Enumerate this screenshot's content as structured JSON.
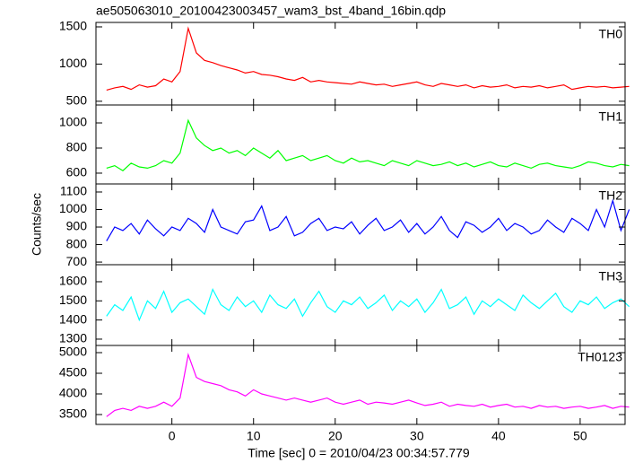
{
  "chart_data": [
    {
      "type": "line",
      "title": "ae505063010_20100423003457_wam3_bst_4band_16bin.qdp",
      "x": [
        -8,
        -7,
        -6,
        -5,
        -4,
        -3,
        -2,
        -1,
        0,
        1,
        2,
        3,
        4,
        5,
        6,
        7,
        8,
        9,
        10,
        11,
        12,
        13,
        14,
        15,
        16,
        17,
        18,
        19,
        20,
        21,
        22,
        23,
        24,
        25,
        26,
        27,
        28,
        29,
        30,
        31,
        32,
        33,
        34,
        35,
        36,
        37,
        38,
        39,
        40,
        41,
        42,
        43,
        44,
        45,
        46,
        47,
        48,
        49,
        50,
        51,
        52,
        53,
        54,
        55,
        56
      ],
      "series": [
        {
          "name": "TH0",
          "color": "#ff0000",
          "values": [
            650,
            680,
            700,
            660,
            720,
            690,
            710,
            800,
            760,
            900,
            1480,
            1150,
            1050,
            1020,
            980,
            950,
            920,
            880,
            900,
            860,
            850,
            830,
            800,
            780,
            820,
            760,
            780,
            760,
            750,
            740,
            730,
            760,
            740,
            720,
            730,
            700,
            720,
            740,
            760,
            720,
            700,
            740,
            720,
            700,
            720,
            680,
            710,
            690,
            700,
            720,
            680,
            700,
            690,
            710,
            680,
            700,
            720,
            660,
            680,
            700,
            690,
            700,
            680,
            690,
            700
          ]
        }
      ],
      "xlim": [
        -9.3,
        55.5
      ],
      "ylim": [
        450,
        1560
      ],
      "yticks": [
        500,
        1000,
        1500
      ]
    },
    {
      "type": "line",
      "x": [
        -8,
        -7,
        -6,
        -5,
        -4,
        -3,
        -2,
        -1,
        0,
        1,
        2,
        3,
        4,
        5,
        6,
        7,
        8,
        9,
        10,
        11,
        12,
        13,
        14,
        15,
        16,
        17,
        18,
        19,
        20,
        21,
        22,
        23,
        24,
        25,
        26,
        27,
        28,
        29,
        30,
        31,
        32,
        33,
        34,
        35,
        36,
        37,
        38,
        39,
        40,
        41,
        42,
        43,
        44,
        45,
        46,
        47,
        48,
        49,
        50,
        51,
        52,
        53,
        54,
        55,
        56
      ],
      "series": [
        {
          "name": "TH1",
          "color": "#00ff00",
          "values": [
            640,
            660,
            620,
            680,
            650,
            640,
            660,
            700,
            680,
            760,
            1020,
            880,
            820,
            780,
            800,
            760,
            780,
            740,
            800,
            760,
            720,
            780,
            700,
            720,
            740,
            700,
            720,
            740,
            700,
            680,
            720,
            690,
            700,
            680,
            660,
            700,
            680,
            660,
            700,
            680,
            660,
            670,
            690,
            660,
            680,
            650,
            670,
            690,
            660,
            650,
            680,
            660,
            640,
            670,
            680,
            660,
            650,
            640,
            660,
            690,
            680,
            660,
            650,
            670,
            660
          ]
        }
      ],
      "xlim": [
        -9.3,
        55.5
      ],
      "ylim": [
        514,
        1143
      ],
      "yticks": [
        600,
        800,
        1000
      ]
    },
    {
      "type": "line",
      "ylabel": "Counts/sec",
      "x": [
        -8,
        -7,
        -6,
        -5,
        -4,
        -3,
        -2,
        -1,
        0,
        1,
        2,
        3,
        4,
        5,
        6,
        7,
        8,
        9,
        10,
        11,
        12,
        13,
        14,
        15,
        16,
        17,
        18,
        19,
        20,
        21,
        22,
        23,
        24,
        25,
        26,
        27,
        28,
        29,
        30,
        31,
        32,
        33,
        34,
        35,
        36,
        37,
        38,
        39,
        40,
        41,
        42,
        43,
        44,
        45,
        46,
        47,
        48,
        49,
        50,
        51,
        52,
        53,
        54,
        55,
        56
      ],
      "series": [
        {
          "name": "TH2",
          "color": "#0000ff",
          "values": [
            820,
            900,
            880,
            920,
            860,
            940,
            890,
            850,
            900,
            880,
            950,
            920,
            870,
            1000,
            900,
            880,
            860,
            930,
            940,
            1020,
            880,
            900,
            960,
            850,
            870,
            920,
            950,
            880,
            900,
            890,
            930,
            860,
            910,
            950,
            880,
            900,
            940,
            870,
            920,
            860,
            900,
            960,
            880,
            840,
            930,
            910,
            870,
            900,
            950,
            880,
            920,
            900,
            860,
            880,
            940,
            900,
            870,
            950,
            920,
            880,
            1000,
            900,
            1050,
            880,
            1000
          ]
        }
      ],
      "xlim": [
        -9.3,
        55.5
      ],
      "ylim": [
        685,
        1146
      ],
      "yticks": [
        700,
        800,
        900,
        1000,
        1100
      ]
    },
    {
      "type": "line",
      "x": [
        -8,
        -7,
        -6,
        -5,
        -4,
        -3,
        -2,
        -1,
        0,
        1,
        2,
        3,
        4,
        5,
        6,
        7,
        8,
        9,
        10,
        11,
        12,
        13,
        14,
        15,
        16,
        17,
        18,
        19,
        20,
        21,
        22,
        23,
        24,
        25,
        26,
        27,
        28,
        29,
        30,
        31,
        32,
        33,
        34,
        35,
        36,
        37,
        38,
        39,
        40,
        41,
        42,
        43,
        44,
        45,
        46,
        47,
        48,
        49,
        50,
        51,
        52,
        53,
        54,
        55,
        56
      ],
      "series": [
        {
          "name": "TH3",
          "color": "#00ffff",
          "values": [
            1420,
            1480,
            1450,
            1520,
            1400,
            1500,
            1460,
            1550,
            1440,
            1490,
            1510,
            1470,
            1430,
            1560,
            1480,
            1450,
            1520,
            1470,
            1500,
            1440,
            1530,
            1480,
            1460,
            1510,
            1420,
            1490,
            1550,
            1470,
            1440,
            1500,
            1480,
            1520,
            1460,
            1490,
            1530,
            1450,
            1500,
            1470,
            1510,
            1440,
            1490,
            1560,
            1460,
            1480,
            1520,
            1430,
            1500,
            1470,
            1510,
            1480,
            1450,
            1530,
            1490,
            1460,
            1500,
            1540,
            1470,
            1440,
            1500,
            1480,
            1520,
            1460,
            1490,
            1510,
            1470
          ]
        }
      ],
      "xlim": [
        -9.3,
        55.5
      ],
      "ylim": [
        1267,
        1689
      ],
      "yticks": [
        1300,
        1400,
        1500,
        1600
      ]
    },
    {
      "type": "line",
      "xlabel": "Time [sec] 0 = 2010/04/23 00:34:57.779",
      "x": [
        -8,
        -7,
        -6,
        -5,
        -4,
        -3,
        -2,
        -1,
        0,
        1,
        2,
        3,
        4,
        5,
        6,
        7,
        8,
        9,
        10,
        11,
        12,
        13,
        14,
        15,
        16,
        17,
        18,
        19,
        20,
        21,
        22,
        23,
        24,
        25,
        26,
        27,
        28,
        29,
        30,
        31,
        32,
        33,
        34,
        35,
        36,
        37,
        38,
        39,
        40,
        41,
        42,
        43,
        44,
        45,
        46,
        47,
        48,
        49,
        50,
        51,
        52,
        53,
        54,
        55,
        56
      ],
      "series": [
        {
          "name": "TH0123",
          "color": "#ff00ff",
          "values": [
            3450,
            3600,
            3650,
            3600,
            3700,
            3650,
            3700,
            3800,
            3700,
            3900,
            4950,
            4400,
            4300,
            4250,
            4200,
            4100,
            4050,
            3950,
            4100,
            4000,
            3950,
            3900,
            3850,
            3900,
            3850,
            3800,
            3850,
            3900,
            3800,
            3750,
            3800,
            3850,
            3750,
            3800,
            3780,
            3750,
            3800,
            3850,
            3780,
            3720,
            3750,
            3800,
            3700,
            3750,
            3720,
            3700,
            3750,
            3680,
            3720,
            3750,
            3680,
            3700,
            3650,
            3720,
            3680,
            3700,
            3650,
            3680,
            3700,
            3650,
            3680,
            3720,
            3650,
            3700,
            3680
          ]
        }
      ],
      "xlim": [
        -9.3,
        55.5
      ],
      "ylim": [
        3261,
        5174
      ],
      "yticks": [
        3500,
        4000,
        4500,
        5000
      ],
      "xticks": [
        0,
        10,
        20,
        30,
        40,
        50
      ]
    }
  ]
}
